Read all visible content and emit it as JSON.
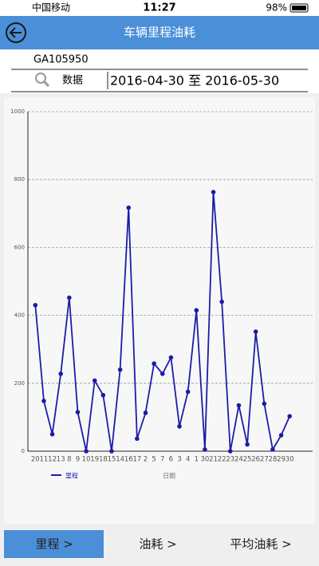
{
  "status_bar": {
    "carrier": "中国移动",
    "time": "11:27",
    "battery": "98%"
  },
  "header": {
    "title": "车辆里程油耗"
  },
  "vehicle_id": "GA105950",
  "search": {
    "label": "数据",
    "date_range": "2016-04-30 至 2016-05-30"
  },
  "chart_data": {
    "type": "line",
    "x_label": "日期",
    "categories": [
      "20",
      "11",
      "12",
      "13",
      "8",
      "9",
      "10",
      "19",
      "18",
      "15",
      "14",
      "16",
      "17",
      "2",
      "5",
      "7",
      "6",
      "3",
      "4",
      "1",
      "30",
      "21",
      "22",
      "23",
      "24",
      "25",
      "26",
      "27",
      "28",
      "29",
      "30"
    ],
    "series": [
      {
        "name": "里程",
        "color": "#1c1ca8",
        "values": [
          430,
          148,
          50,
          228,
          452,
          115,
          0,
          208,
          165,
          0,
          240,
          717,
          37,
          113,
          258,
          228,
          276,
          73,
          175,
          415,
          5,
          763,
          440,
          0,
          135,
          20,
          352,
          140,
          5,
          47,
          103
        ]
      }
    ],
    "ylim": [
      0,
      1000
    ],
    "yticks": [
      0,
      200,
      400,
      600,
      800,
      1000
    ],
    "grid": true
  },
  "tabs": [
    "里程 >",
    "油耗 >",
    "平均油耗 >"
  ]
}
